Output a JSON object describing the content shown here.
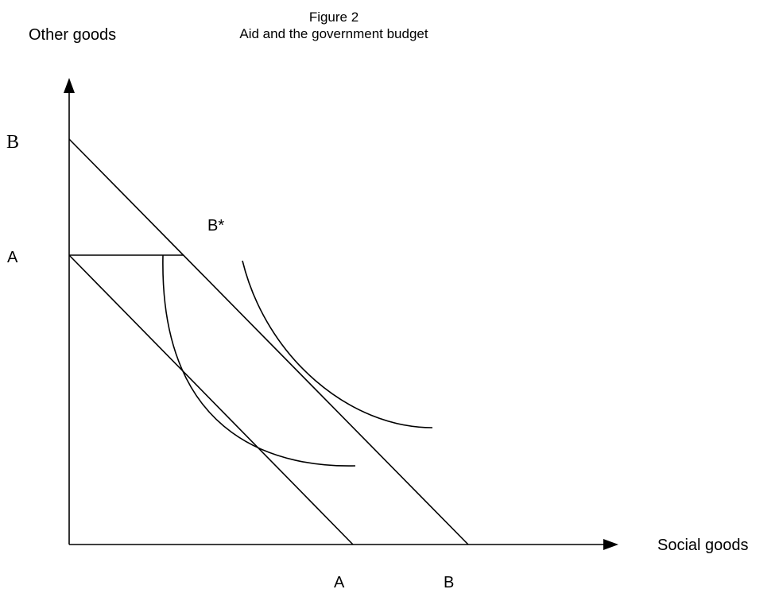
{
  "figure": {
    "number": "Figure 2",
    "title": "Aid and the government budget"
  },
  "axes": {
    "y_label": "Other goods",
    "x_label": "Social goods"
  },
  "labels": {
    "y_B": "B",
    "y_A": "A",
    "x_A": "A",
    "x_B": "B",
    "kink_point": "B*"
  },
  "colors": {
    "ink": "#000000",
    "background": "#ffffff"
  }
}
